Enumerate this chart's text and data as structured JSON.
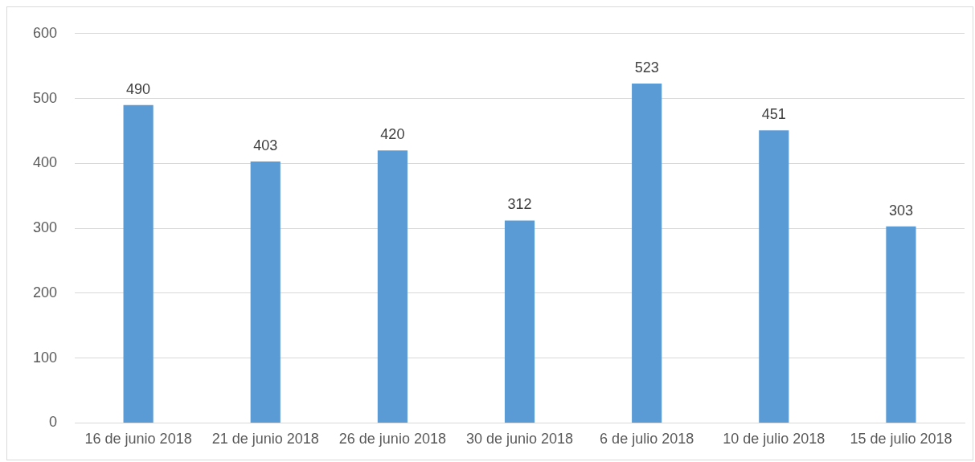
{
  "chart_data": {
    "type": "bar",
    "categories": [
      "16 de junio 2018",
      "21 de junio 2018",
      "26 de junio 2018",
      "30 de junio 2018",
      "6 de julio 2018",
      "10 de julio 2018",
      "15 de julio 2018"
    ],
    "values": [
      490,
      403,
      420,
      312,
      523,
      451,
      303
    ],
    "color": "#5b9bd5",
    "ylim": [
      0,
      600
    ],
    "yticks": [
      0,
      100,
      200,
      300,
      400,
      500,
      600
    ],
    "grid": "y",
    "data_labels": true
  }
}
